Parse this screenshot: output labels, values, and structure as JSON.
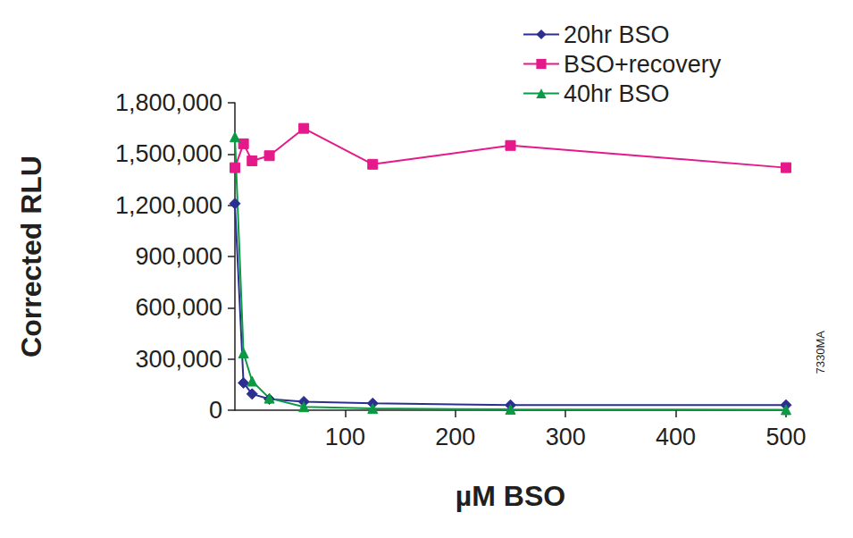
{
  "chart_data": {
    "type": "line",
    "x_label": "µM BSO",
    "y_label": "Corrected RLU",
    "annotation": "7330MA",
    "x": [
      0,
      7.8,
      15.6,
      31.25,
      62.5,
      125,
      250,
      500
    ],
    "series": [
      {
        "name": "20hr BSO",
        "color": "#2b2f8f",
        "marker": "diamond",
        "values": [
          1210000,
          160000,
          95000,
          65000,
          50000,
          40000,
          30000,
          30000
        ]
      },
      {
        "name": "BSO+recovery",
        "color": "#e5198a",
        "marker": "square",
        "values": [
          1420000,
          1560000,
          1460000,
          1490000,
          1650000,
          1440000,
          1550000,
          1420000
        ]
      },
      {
        "name": "40hr BSO",
        "color": "#0a9a44",
        "marker": "triangle",
        "values": [
          1600000,
          335000,
          170000,
          70000,
          20000,
          10000,
          5000,
          3000
        ]
      }
    ],
    "xlim": [
      0,
      500
    ],
    "xticks": [
      100,
      200,
      300,
      400,
      500
    ],
    "ylim": [
      0,
      1800000
    ],
    "yticks": [
      0,
      {
        "value": 300000,
        "label": "300,000"
      },
      {
        "value": 600000,
        "label": "600,000"
      },
      {
        "value": 900000,
        "label": "900,000"
      },
      {
        "value": 1200000,
        "label": "1,200,000"
      },
      {
        "value": 1500000,
        "label": "1,500,000"
      },
      {
        "value": 1800000,
        "label": "1,800,000"
      }
    ],
    "grid": false,
    "legend": "top-right"
  }
}
